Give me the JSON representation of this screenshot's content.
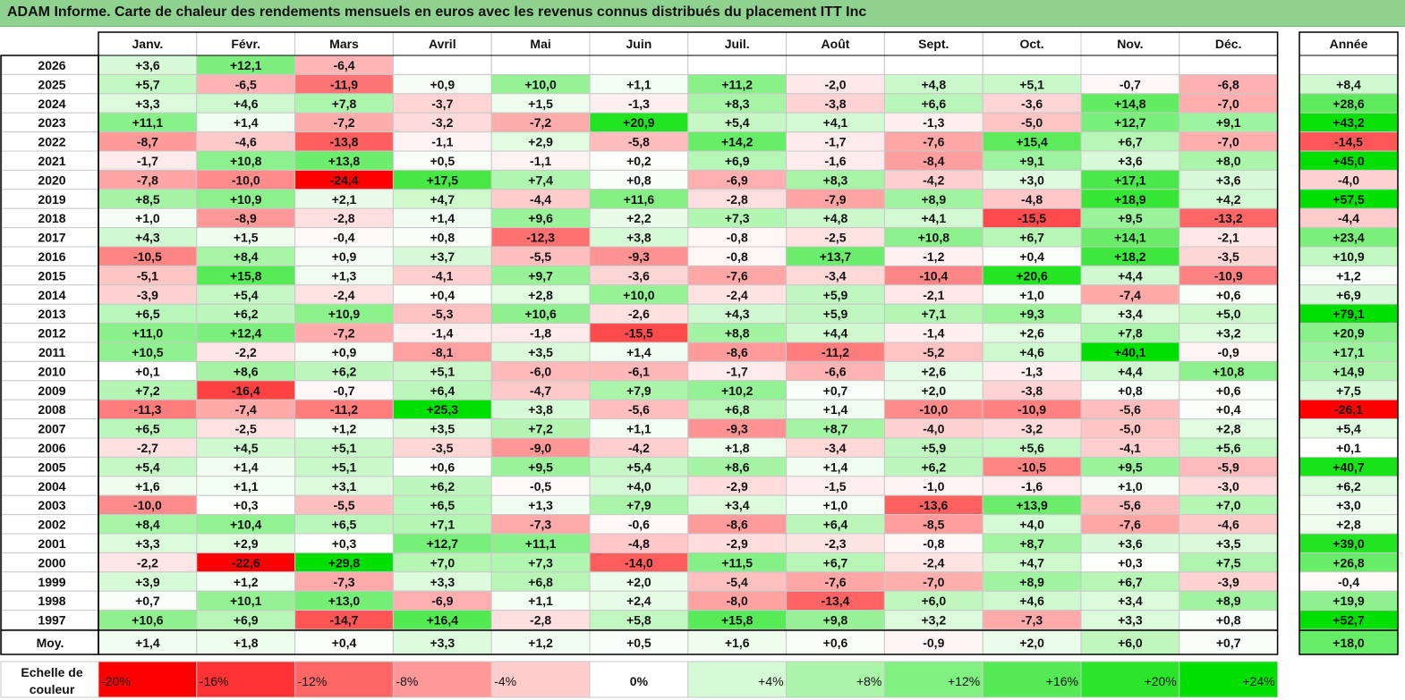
{
  "title": "ADAM Informe. Carte de chaleur des rendements mensuels en euros avec les revenus connus distribués du placement ITT Inc",
  "chart_data": {
    "type": "heatmap",
    "columns": [
      "Janv.",
      "Févr.",
      "Mars",
      "Avril",
      "Mai",
      "Juin",
      "Juil.",
      "Août",
      "Sept.",
      "Oct.",
      "Nov.",
      "Déc."
    ],
    "year_column_label": "Année",
    "average_row_label": "Moy.",
    "rows": [
      {
        "year": "2026",
        "months": [
          "+3,6",
          "+12,1",
          "-6,4",
          "",
          "",
          "",
          "",
          "",
          "",
          "",
          "",
          ""
        ],
        "annual": ""
      },
      {
        "year": "2025",
        "months": [
          "+5,7",
          "-6,5",
          "-11,9",
          "+0,9",
          "+10,0",
          "+1,1",
          "+11,2",
          "-2,0",
          "+4,8",
          "+5,1",
          "-0,7",
          "-6,8"
        ],
        "annual": "+8,4"
      },
      {
        "year": "2024",
        "months": [
          "+3,3",
          "+4,6",
          "+7,8",
          "-3,7",
          "+1,5",
          "-1,3",
          "+8,3",
          "-3,8",
          "+6,6",
          "-3,6",
          "+14,8",
          "-7,0"
        ],
        "annual": "+28,6"
      },
      {
        "year": "2023",
        "months": [
          "+11,1",
          "+1,4",
          "-7,2",
          "-3,2",
          "-7,2",
          "+20,9",
          "+5,4",
          "+4,1",
          "-1,3",
          "-5,0",
          "+12,7",
          "+9,1"
        ],
        "annual": "+43,2"
      },
      {
        "year": "2022",
        "months": [
          "-8,7",
          "-4,6",
          "-13,8",
          "-1,1",
          "+2,9",
          "-5,8",
          "+14,2",
          "-1,7",
          "-7,6",
          "+15,4",
          "+6,7",
          "-7,0"
        ],
        "annual": "-14,5"
      },
      {
        "year": "2021",
        "months": [
          "-1,7",
          "+10,8",
          "+13,8",
          "+0,5",
          "-1,1",
          "+0,2",
          "+6,9",
          "-1,6",
          "-8,4",
          "+9,1",
          "+3,6",
          "+8,0"
        ],
        "annual": "+45,0"
      },
      {
        "year": "2020",
        "months": [
          "-7,8",
          "-10,0",
          "-24,4",
          "+17,5",
          "+7,4",
          "+0,8",
          "-6,9",
          "+8,3",
          "-4,2",
          "+3,0",
          "+17,1",
          "+3,6"
        ],
        "annual": "-4,0"
      },
      {
        "year": "2019",
        "months": [
          "+8,5",
          "+10,9",
          "+2,1",
          "+4,7",
          "-4,4",
          "+11,6",
          "-2,8",
          "-7,9",
          "+8,9",
          "-4,8",
          "+18,9",
          "+4,2"
        ],
        "annual": "+57,5"
      },
      {
        "year": "2018",
        "months": [
          "+1,0",
          "-8,9",
          "-2,8",
          "+1,4",
          "+9,6",
          "+2,2",
          "+7,3",
          "+4,8",
          "+4,1",
          "-15,5",
          "+9,5",
          "-13,2"
        ],
        "annual": "-4,4"
      },
      {
        "year": "2017",
        "months": [
          "+4,3",
          "+1,5",
          "-0,4",
          "+0,8",
          "-12,3",
          "+3,8",
          "-0,8",
          "-2,5",
          "+10,8",
          "+6,7",
          "+14,1",
          "-2,1"
        ],
        "annual": "+23,4"
      },
      {
        "year": "2016",
        "months": [
          "-10,5",
          "+8,4",
          "+0,9",
          "+3,7",
          "-5,5",
          "-9,3",
          "-0,8",
          "+13,7",
          "-1,2",
          "+0,4",
          "+18,2",
          "-3,5"
        ],
        "annual": "+10,9"
      },
      {
        "year": "2015",
        "months": [
          "-5,1",
          "+15,8",
          "+1,3",
          "-4,1",
          "+9,7",
          "-3,6",
          "-7,6",
          "-3,4",
          "-10,4",
          "+20,6",
          "+4,4",
          "-10,9"
        ],
        "annual": "+1,2"
      },
      {
        "year": "2014",
        "months": [
          "-3,9",
          "+5,4",
          "-2,4",
          "+0,4",
          "+2,8",
          "+10,0",
          "-2,4",
          "+5,9",
          "-2,1",
          "+1,0",
          "-7,4",
          "+0,6"
        ],
        "annual": "+6,9"
      },
      {
        "year": "2013",
        "months": [
          "+6,5",
          "+6,2",
          "+10,9",
          "-5,3",
          "+10,6",
          "-2,6",
          "+4,3",
          "+5,9",
          "+7,1",
          "+9,3",
          "+3,4",
          "+5,0"
        ],
        "annual": "+79,1"
      },
      {
        "year": "2012",
        "months": [
          "+11,0",
          "+12,4",
          "-7,2",
          "-1,4",
          "-1,8",
          "-15,5",
          "+8,8",
          "+4,4",
          "-1,4",
          "+2,6",
          "+7,8",
          "+3,2"
        ],
        "annual": "+20,9"
      },
      {
        "year": "2011",
        "months": [
          "+10,5",
          "-2,2",
          "+0,9",
          "-8,1",
          "+3,5",
          "+1,4",
          "-8,6",
          "-11,2",
          "-5,2",
          "+4,6",
          "+40,1",
          "-0,9"
        ],
        "annual": "+17,1"
      },
      {
        "year": "2010",
        "months": [
          "+0,1",
          "+8,6",
          "+6,2",
          "+5,1",
          "-6,0",
          "-6,1",
          "-1,7",
          "-6,6",
          "+2,6",
          "-1,3",
          "+4,4",
          "+10,8"
        ],
        "annual": "+14,9"
      },
      {
        "year": "2009",
        "months": [
          "+7,2",
          "-16,4",
          "-0,7",
          "+6,4",
          "-4,7",
          "+7,9",
          "+10,2",
          "+0,7",
          "+2,0",
          "-3,8",
          "+0,8",
          "+0,6"
        ],
        "annual": "+7,5"
      },
      {
        "year": "2008",
        "months": [
          "-11,3",
          "-7,4",
          "-11,2",
          "+25,3",
          "+3,8",
          "-5,6",
          "+6,8",
          "+1,4",
          "-10,0",
          "-10,9",
          "-5,6",
          "+0,4"
        ],
        "annual": "-26,1"
      },
      {
        "year": "2007",
        "months": [
          "+6,5",
          "-2,5",
          "+1,2",
          "+3,5",
          "+7,2",
          "+1,1",
          "-9,3",
          "+8,7",
          "-4,0",
          "-3,2",
          "-5,0",
          "+2,8"
        ],
        "annual": "+5,4"
      },
      {
        "year": "2006",
        "months": [
          "-2,7",
          "+4,5",
          "+5,1",
          "-3,5",
          "-9,0",
          "-4,2",
          "+1,8",
          "-3,4",
          "+5,9",
          "+5,6",
          "-4,1",
          "+5,6"
        ],
        "annual": "+0,1"
      },
      {
        "year": "2005",
        "months": [
          "+5,4",
          "+1,4",
          "+5,1",
          "+0,6",
          "+9,5",
          "+5,4",
          "+8,6",
          "+1,4",
          "+6,2",
          "-10,5",
          "+9,5",
          "-5,9"
        ],
        "annual": "+40,7"
      },
      {
        "year": "2004",
        "months": [
          "+1,6",
          "+1,1",
          "+3,1",
          "+6,2",
          "-0,5",
          "+4,0",
          "-2,9",
          "-1,5",
          "-1,0",
          "-1,6",
          "+1,0",
          "-3,0"
        ],
        "annual": "+6,2"
      },
      {
        "year": "2003",
        "months": [
          "-10,0",
          "+0,3",
          "-5,5",
          "+6,5",
          "+1,3",
          "+7,9",
          "+3,4",
          "+1,0",
          "-13,6",
          "+13,9",
          "-5,6",
          "+7,0"
        ],
        "annual": "+3,0"
      },
      {
        "year": "2002",
        "months": [
          "+8,4",
          "+10,4",
          "+6,5",
          "+7,1",
          "-7,3",
          "-0,6",
          "-8,6",
          "+6,4",
          "-8,5",
          "+4,0",
          "-7,6",
          "-4,6"
        ],
        "annual": "+2,8"
      },
      {
        "year": "2001",
        "months": [
          "+3,3",
          "+2,9",
          "+0,3",
          "+12,7",
          "+11,1",
          "-4,8",
          "-2,9",
          "-2,3",
          "-0,8",
          "+8,7",
          "+3,6",
          "+3,5"
        ],
        "annual": "+39,0"
      },
      {
        "year": "2000",
        "months": [
          "-2,2",
          "-22,6",
          "+29,8",
          "+7,0",
          "+7,3",
          "-14,0",
          "+11,5",
          "+6,7",
          "-2,4",
          "+4,7",
          "+0,3",
          "+7,5"
        ],
        "annual": "+26,8"
      },
      {
        "year": "1999",
        "months": [
          "+3,9",
          "+1,2",
          "-7,3",
          "+3,3",
          "+6,8",
          "+2,0",
          "-5,4",
          "-7,6",
          "-7,0",
          "+8,9",
          "+6,7",
          "-3,9"
        ],
        "annual": "-0,4"
      },
      {
        "year": "1998",
        "months": [
          "+0,7",
          "+10,1",
          "+13,0",
          "-6,9",
          "+1,1",
          "+2,4",
          "-8,0",
          "-13,4",
          "+6,0",
          "+4,6",
          "+3,4",
          "+8,9"
        ],
        "annual": "+19,9"
      },
      {
        "year": "1997",
        "months": [
          "+10,6",
          "+6,9",
          "-14,7",
          "+16,4",
          "-2,8",
          "+5,8",
          "+15,8",
          "+9,8",
          "+3,2",
          "-7,3",
          "+3,3",
          "+0,8"
        ],
        "annual": "+52,7"
      }
    ],
    "averages": {
      "months": [
        "+1,4",
        "+1,8",
        "+0,4",
        "+3,3",
        "+1,2",
        "+0,5",
        "+1,6",
        "+0,6",
        "-0,9",
        "+2,0",
        "+6,0",
        "+0,7"
      ],
      "annual": "+18,0"
    },
    "scale": {
      "label_line1": "Echelle de",
      "label_line2": "couleur",
      "stops": [
        {
          "label": "-20%",
          "value": -20
        },
        {
          "label": "-16%",
          "value": -16
        },
        {
          "label": "-12%",
          "value": -12
        },
        {
          "label": "-8%",
          "value": -8
        },
        {
          "label": "-4%",
          "value": -4
        },
        {
          "label": "0%",
          "value": 0
        },
        {
          "label": "+4%",
          "value": 4
        },
        {
          "label": "+8%",
          "value": 8
        },
        {
          "label": "+12%",
          "value": 12
        },
        {
          "label": "+16%",
          "value": 16
        },
        {
          "label": "+20%",
          "value": 20
        },
        {
          "label": "+24%",
          "value": 24
        }
      ]
    },
    "colors": {
      "negative_max": "#ff0000",
      "neutral": "#ffffff",
      "positive_max": "#00e000",
      "grid": "#c8c8c8",
      "border": "#000000",
      "title_background": "#8fd18f"
    }
  }
}
